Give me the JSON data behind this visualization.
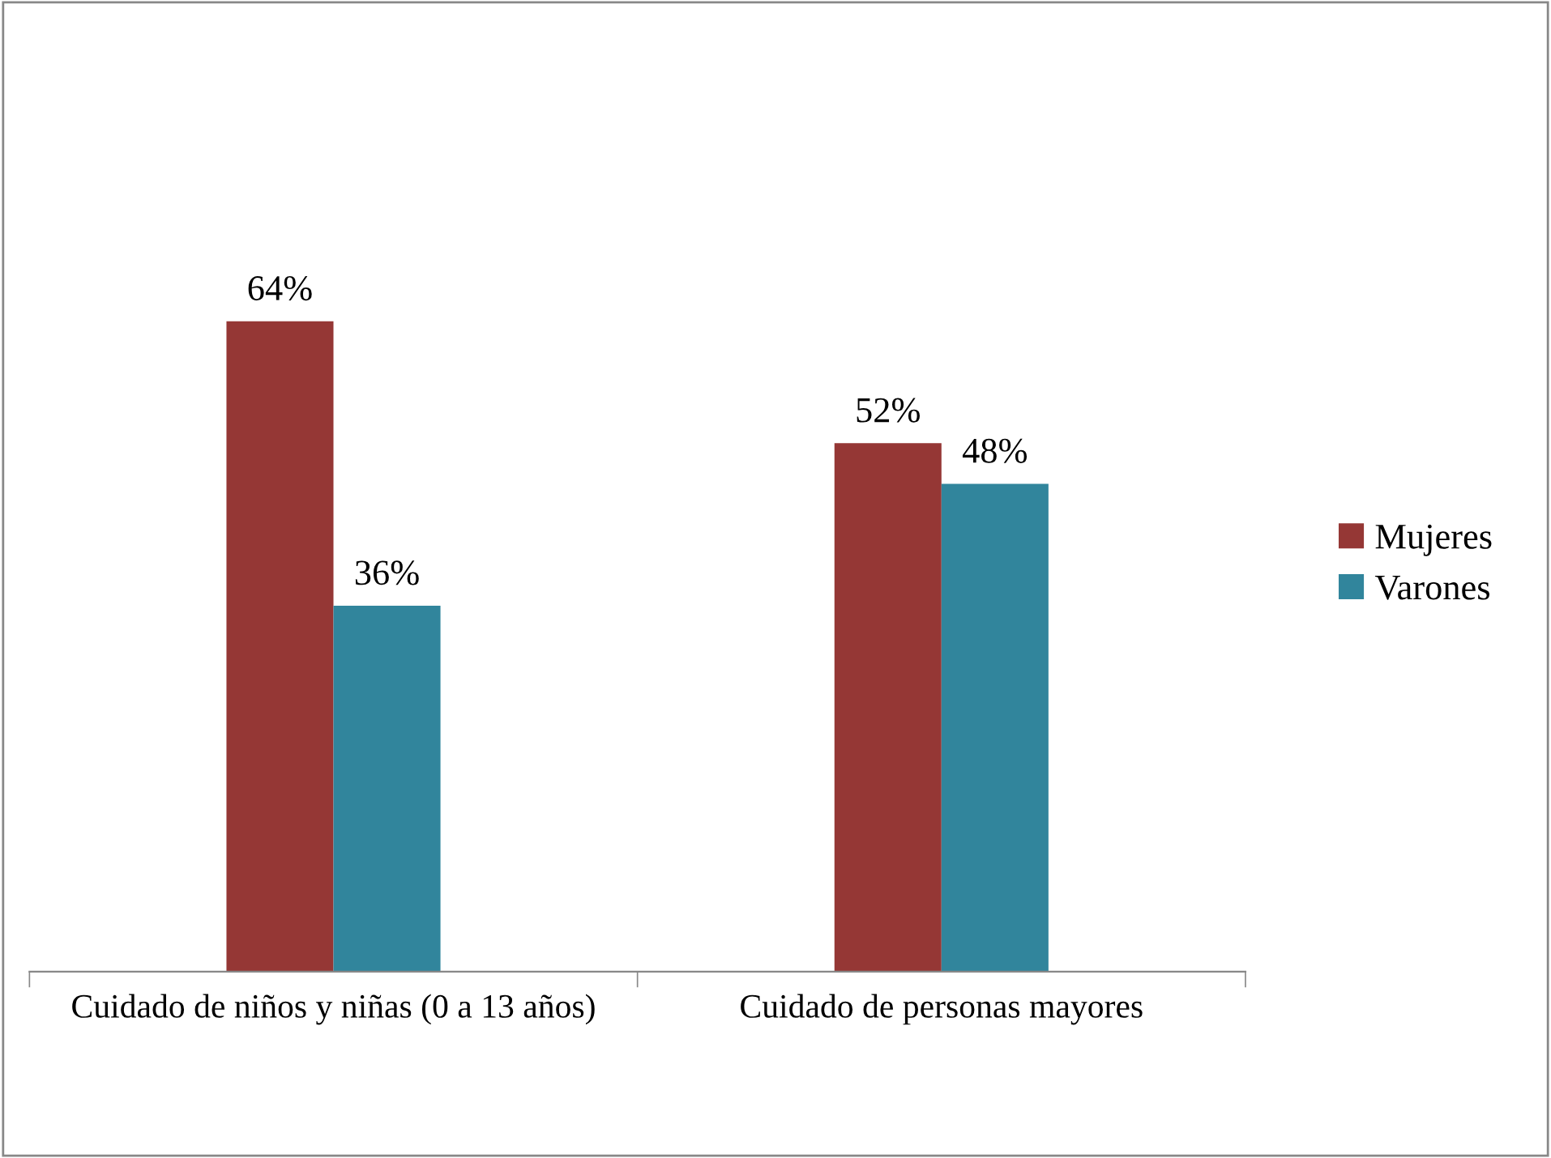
{
  "chart_data": {
    "type": "bar",
    "categories": [
      "Cuidado de niños y niñas (0 a 13 años)",
      "Cuidado de personas mayores"
    ],
    "series": [
      {
        "name": "Mujeres",
        "color": "#953735",
        "values": [
          64,
          52
        ],
        "value_labels": [
          "64%",
          "52%"
        ]
      },
      {
        "name": "Varones",
        "color": "#31859c",
        "values": [
          36,
          48
        ],
        "value_labels": [
          "36%",
          "48%"
        ]
      }
    ],
    "legend": "right",
    "grid": false
  }
}
